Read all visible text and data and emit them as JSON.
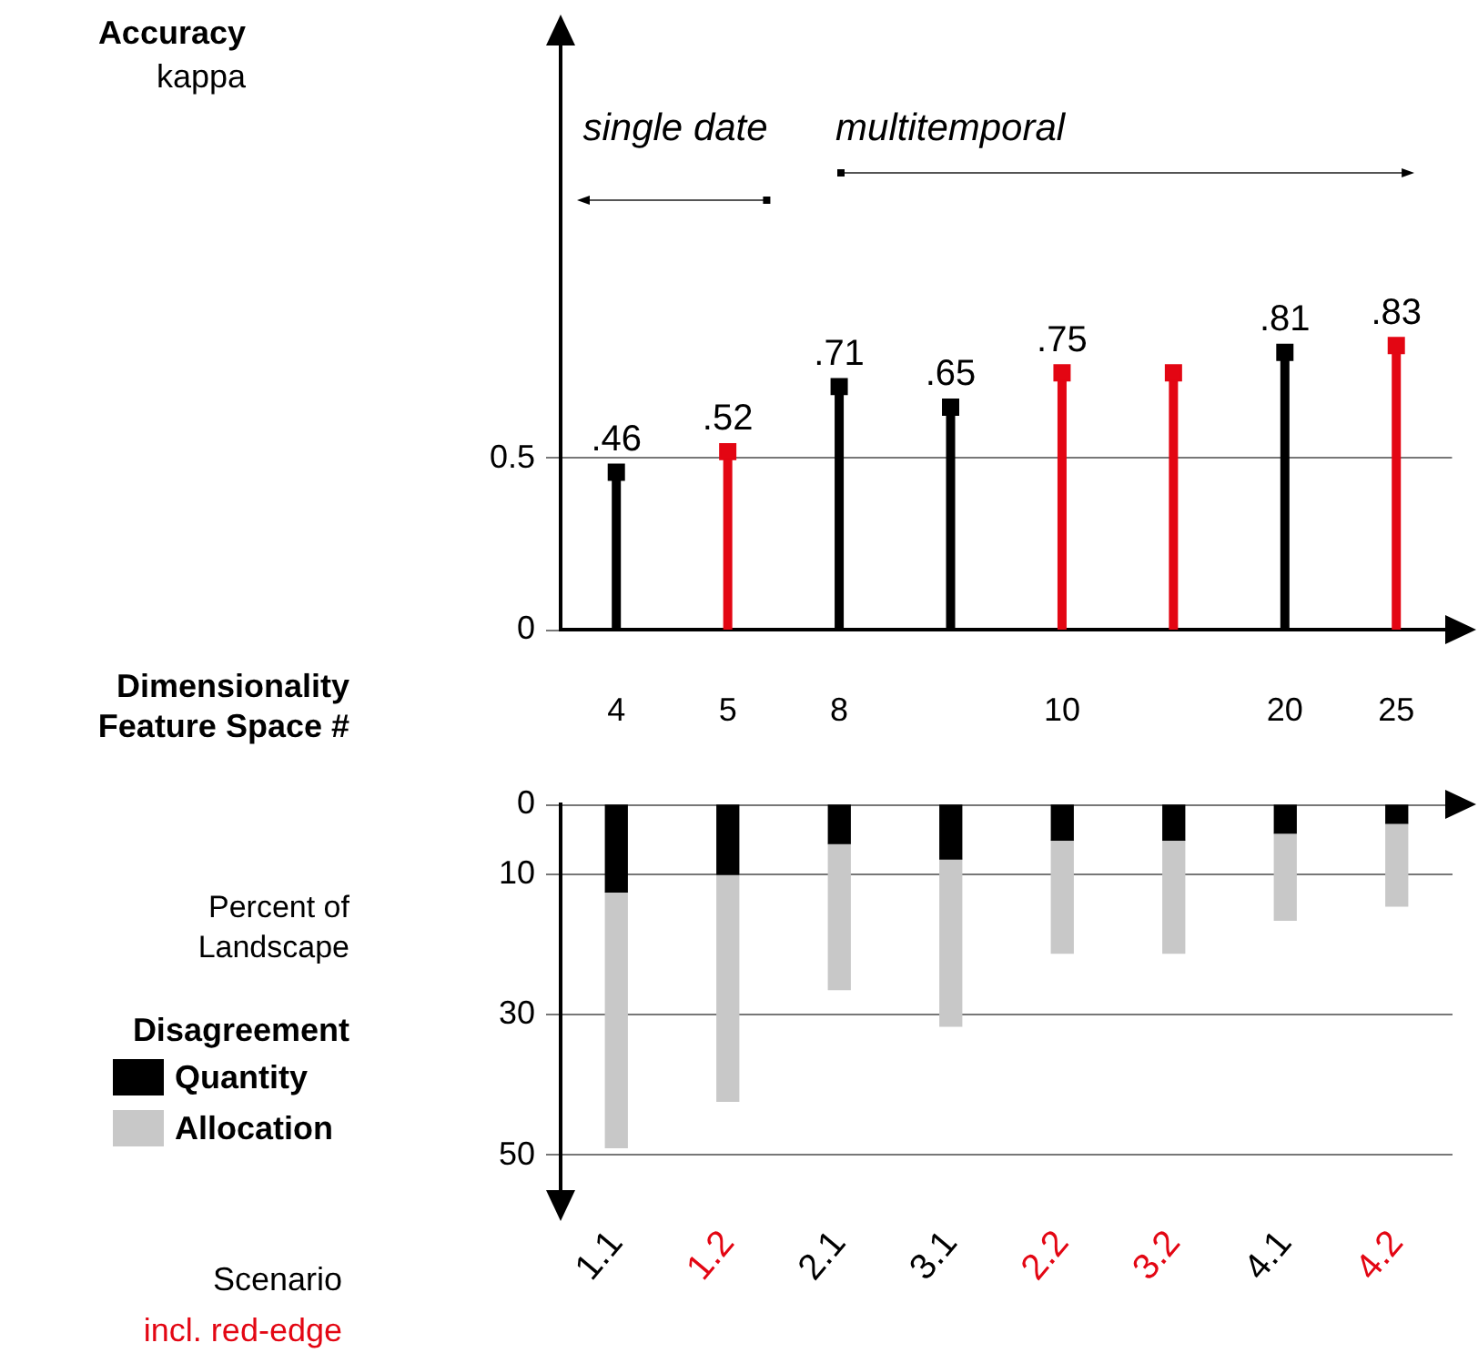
{
  "chart_data": [
    {
      "type": "lollipop",
      "ylabel": "Accuracy kappa",
      "xlabel": "Dimensionality Feature Space #",
      "categories": [
        "4",
        "5",
        "8",
        null,
        "10",
        null,
        "20",
        "25"
      ],
      "values": [
        0.46,
        0.52,
        0.71,
        0.65,
        0.75,
        0.75,
        0.81,
        0.83
      ],
      "value_labels": [
        ".46",
        ".52",
        ".71",
        ".65",
        ".75",
        null,
        ".81",
        ".83"
      ],
      "colors": [
        "#000000",
        "#e30613",
        "#000000",
        "#000000",
        "#e30613",
        "#e30613",
        "#000000",
        "#e30613"
      ],
      "marker": "square",
      "ylim": [
        0,
        1.75
      ],
      "yticks": [
        0,
        0.5
      ],
      "grid": "y",
      "annotations": [
        "single date",
        "multitemporal"
      ]
    },
    {
      "type": "bar",
      "stacked": true,
      "categories": [
        "1.1",
        "1.2",
        "2.1",
        "3.1",
        "2.2",
        "3.2",
        "4.1",
        "4.2"
      ],
      "series": [
        {
          "name": "Quantity",
          "color": "#000000",
          "values": [
            12.5,
            10.0,
            5.6,
            7.8,
            5.1,
            5.1,
            4.1,
            2.7
          ]
        },
        {
          "name": "Allocation",
          "color": "#c8c8c8",
          "values": [
            36.4,
            32.3,
            20.8,
            23.8,
            16.1,
            16.1,
            12.4,
            11.8
          ]
        }
      ],
      "ylabel": "Percent of Landscape",
      "legend_title": "Disagreement",
      "legend": "left",
      "xlabel": "Scenario",
      "annotations": [
        "incl. red-edge"
      ],
      "ylim": [
        56,
        0
      ],
      "yticks": [
        0,
        10,
        30,
        50
      ],
      "grid": "y"
    }
  ]
}
